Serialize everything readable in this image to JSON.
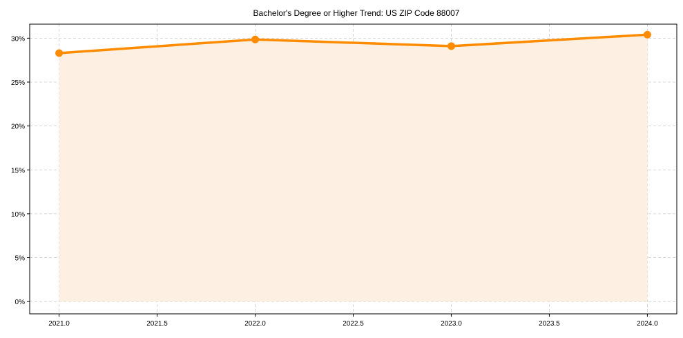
{
  "chart_data": {
    "type": "line",
    "title": "Bachelor's Degree or Higher Trend: US ZIP Code 88007",
    "xlabel": "",
    "ylabel": "",
    "x": [
      2021,
      2022,
      2023,
      2024
    ],
    "values": [
      28.3,
      29.85,
      29.1,
      30.4
    ],
    "xlim": [
      2020.85,
      2024.15
    ],
    "ylim": [
      -1.4,
      31.6
    ],
    "x_ticks": [
      2021.0,
      2021.5,
      2022.0,
      2022.5,
      2023.0,
      2023.5,
      2024.0
    ],
    "x_tick_labels": [
      "2021.0",
      "2021.5",
      "2022.0",
      "2022.5",
      "2023.0",
      "2023.5",
      "2024.0"
    ],
    "y_ticks": [
      0,
      5,
      10,
      15,
      20,
      25,
      30
    ],
    "y_tick_labels": [
      "0%",
      "5%",
      "10%",
      "15%",
      "20%",
      "25%",
      "30%"
    ],
    "grid": true,
    "line_color": "#ff8c00",
    "fill_color": "#fdf0e2"
  }
}
